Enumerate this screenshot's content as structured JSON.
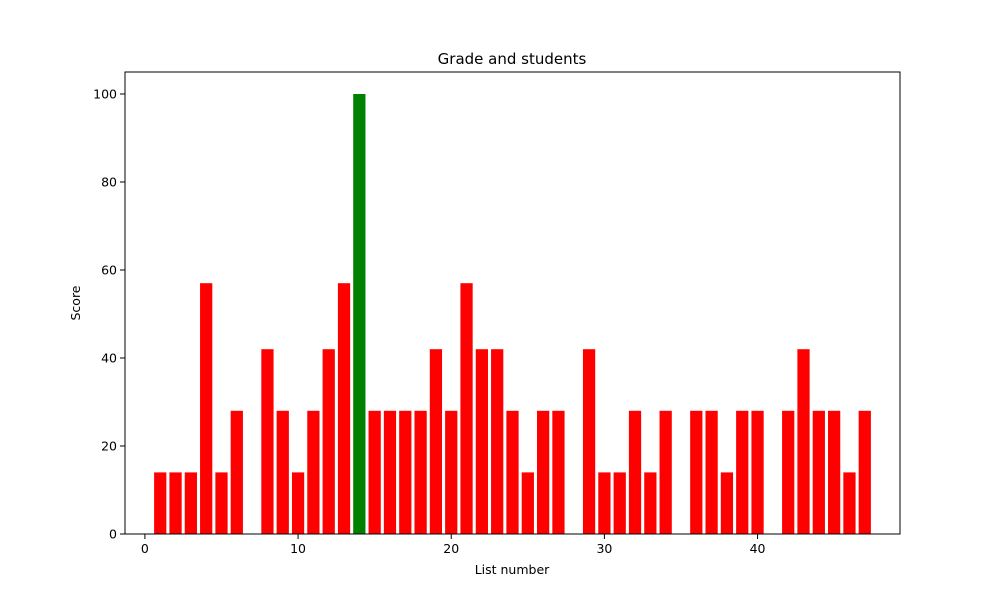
{
  "chart_data": {
    "type": "bar",
    "title": "Grade and students",
    "xlabel": "List number",
    "ylabel": "Score",
    "xlim": [
      -1.3,
      49.3
    ],
    "ylim": [
      0,
      105
    ],
    "xticks": [
      0,
      10,
      20,
      30,
      40
    ],
    "yticks": [
      0,
      20,
      40,
      60,
      80,
      100
    ],
    "grid": false,
    "legend": "none",
    "bar_color_default": "#ff0000",
    "bar_color_highlight": "#008000",
    "highlight_x": 14,
    "x": [
      1,
      2,
      3,
      4,
      5,
      6,
      7,
      8,
      9,
      10,
      11,
      12,
      13,
      14,
      15,
      16,
      17,
      18,
      19,
      20,
      21,
      22,
      23,
      24,
      25,
      26,
      27,
      28,
      29,
      30,
      31,
      32,
      33,
      34,
      35,
      36,
      37,
      38,
      39,
      40,
      41,
      42,
      43,
      44,
      45,
      46,
      47
    ],
    "values": [
      14,
      14,
      14,
      57,
      14,
      28,
      0,
      42,
      28,
      14,
      28,
      42,
      57,
      100,
      28,
      28,
      28,
      28,
      42,
      28,
      57,
      42,
      42,
      28,
      14,
      28,
      28,
      0,
      42,
      14,
      14,
      28,
      14,
      28,
      0,
      28,
      28,
      14,
      28,
      28,
      0,
      28,
      42,
      28,
      28,
      14,
      28
    ]
  }
}
